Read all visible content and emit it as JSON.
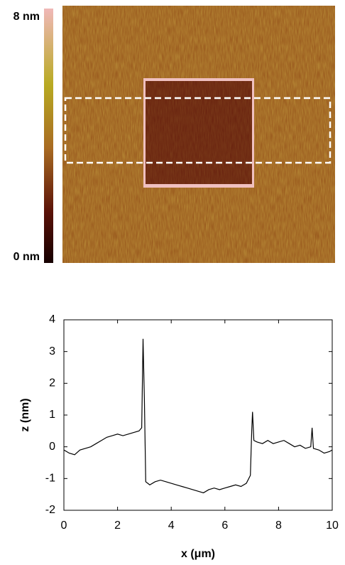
{
  "chart_data": [
    {
      "type": "image",
      "clim": [
        0,
        8
      ],
      "colorbar_ticks": [
        {
          "value": 8,
          "label": "8 nm"
        },
        {
          "value": 0,
          "label": "0 nm"
        }
      ]
    },
    {
      "type": "line",
      "xlabel": "x (μm)",
      "ylabel": "z (nm)",
      "x": [
        0,
        0.2,
        0.4,
        0.6,
        0.8,
        1.0,
        1.2,
        1.4,
        1.6,
        1.8,
        2.0,
        2.2,
        2.4,
        2.6,
        2.8,
        2.9,
        2.95,
        3.0,
        3.05,
        3.2,
        3.4,
        3.6,
        3.8,
        4.0,
        4.2,
        4.4,
        4.6,
        4.8,
        5.0,
        5.2,
        5.4,
        5.6,
        5.8,
        6.0,
        6.2,
        6.4,
        6.6,
        6.8,
        6.95,
        7.0,
        7.03,
        7.08,
        7.2,
        7.4,
        7.6,
        7.8,
        8.0,
        8.2,
        8.4,
        8.6,
        8.8,
        9.0,
        9.2,
        9.25,
        9.3,
        9.5,
        9.7,
        9.9,
        10
      ],
      "series": [
        {
          "color": "#000000",
          "values": [
            -0.1,
            -0.2,
            -0.25,
            -0.1,
            -0.05,
            0.0,
            0.1,
            0.2,
            0.3,
            0.35,
            0.4,
            0.35,
            0.4,
            0.45,
            0.5,
            0.6,
            3.4,
            1.5,
            -1.1,
            -1.2,
            -1.1,
            -1.05,
            -1.1,
            -1.15,
            -1.2,
            -1.25,
            -1.3,
            -1.35,
            -1.4,
            -1.45,
            -1.35,
            -1.3,
            -1.35,
            -1.3,
            -1.25,
            -1.2,
            -1.25,
            -1.15,
            -0.9,
            0.5,
            1.1,
            0.2,
            0.15,
            0.1,
            0.2,
            0.1,
            0.15,
            0.2,
            0.1,
            0.0,
            0.05,
            -0.05,
            0.0,
            0.6,
            -0.05,
            -0.1,
            -0.2,
            -0.15,
            -0.1
          ]
        }
      ],
      "xlim": [
        0,
        10
      ],
      "xticks": [
        0,
        2,
        4,
        6,
        8,
        10
      ],
      "ylim": [
        -2,
        4
      ],
      "yticks": [
        -2,
        -1,
        0,
        1,
        2,
        3,
        4
      ]
    }
  ]
}
